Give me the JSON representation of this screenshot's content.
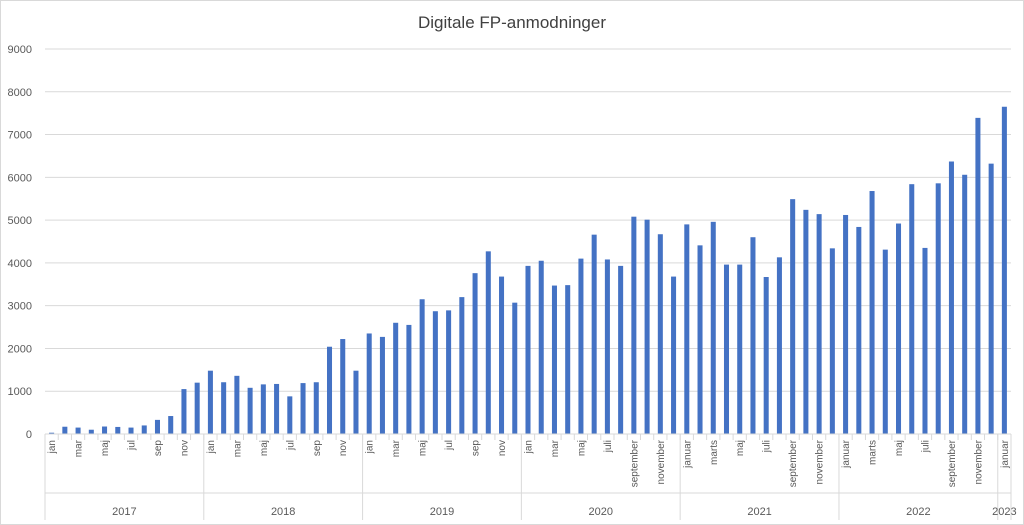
{
  "chart_data": {
    "type": "bar",
    "title": "Digitale FP-anmodninger",
    "ylim": [
      0,
      9000
    ],
    "yticks": [
      0,
      1000,
      2000,
      3000,
      4000,
      5000,
      6000,
      7000,
      8000,
      9000
    ],
    "grid": true,
    "legend": "none",
    "bar_color": "#4472c4",
    "years": [
      {
        "label": "2017",
        "months": [
          "jan",
          "",
          "mar",
          "",
          "maj",
          "",
          "jul",
          "",
          "sep",
          "",
          "nov",
          ""
        ],
        "values": [
          30,
          170,
          150,
          100,
          175,
          165,
          150,
          200,
          330,
          420,
          1050,
          1200
        ]
      },
      {
        "label": "2018",
        "months": [
          "jan",
          "",
          "mar",
          "",
          "maj",
          "",
          "jul",
          "",
          "sep",
          "",
          "nov",
          ""
        ],
        "values": [
          1480,
          1210,
          1360,
          1080,
          1160,
          1170,
          880,
          1190,
          1210,
          2040,
          2220,
          1480
        ]
      },
      {
        "label": "2019",
        "months": [
          "jan",
          "",
          "mar",
          "",
          "maj",
          "",
          "jul",
          "",
          "sep",
          "",
          "nov",
          ""
        ],
        "values": [
          2350,
          2270,
          2600,
          2550,
          3150,
          2870,
          2890,
          3200,
          3760,
          4270,
          3680,
          3070
        ]
      },
      {
        "label": "2020",
        "months": [
          "jan",
          "",
          "mar",
          "",
          "maj",
          "",
          "juli",
          "",
          "september",
          "",
          "november",
          ""
        ],
        "values": [
          3930,
          4050,
          3470,
          3480,
          4100,
          4660,
          4080,
          3930,
          5080,
          5010,
          4670,
          3680
        ]
      },
      {
        "label": "2021",
        "months": [
          "januar",
          "",
          "marts",
          "",
          "maj",
          "",
          "juli",
          "",
          "september",
          "",
          "november",
          ""
        ],
        "values": [
          4900,
          4410,
          4960,
          3960,
          3960,
          4600,
          3670,
          4130,
          5490,
          5240,
          5140,
          4340
        ]
      },
      {
        "label": "2022",
        "months": [
          "januar",
          "",
          "marts",
          "",
          "maj",
          "",
          "juli",
          "",
          "september",
          "",
          "november",
          ""
        ],
        "values": [
          5120,
          4840,
          5680,
          4310,
          4920,
          5840,
          4350,
          5860,
          6370,
          6060,
          7390,
          6320
        ]
      },
      {
        "label": "2023",
        "months": [
          "januar"
        ],
        "values": [
          7650
        ]
      }
    ]
  }
}
